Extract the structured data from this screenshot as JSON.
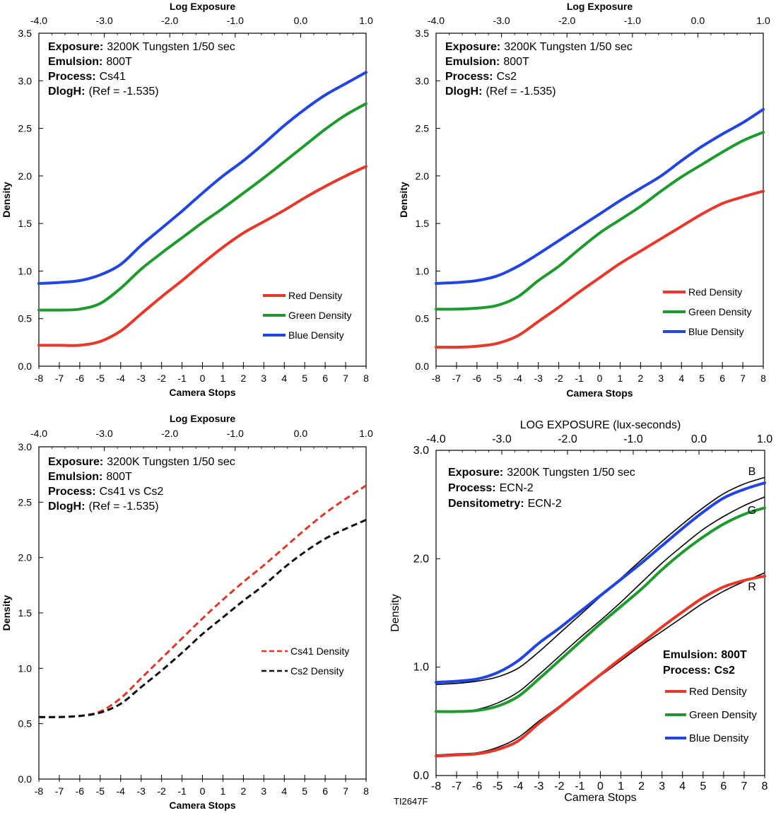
{
  "chart_data": [
    {
      "type": "line",
      "top_axis_title": "Log Exposure",
      "top_ticks": [
        "-4.0",
        "-3.0",
        "-2.0",
        "-1.0",
        "0.0",
        "1.0"
      ],
      "xlabel": "Camera Stops",
      "x_ticks": [
        "-8",
        "-7",
        "-6",
        "-5",
        "-4",
        "-3",
        "-2",
        "-1",
        "0",
        "1",
        "2",
        "3",
        "4",
        "5",
        "6",
        "7",
        "8"
      ],
      "ylabel": "Density",
      "y_ticks": [
        "0.0",
        "0.5",
        "1.0",
        "1.5",
        "2.0",
        "2.5",
        "3.0",
        "3.5"
      ],
      "xlim": [
        -8,
        8
      ],
      "ylim": [
        0,
        3.5
      ],
      "info": [
        {
          "key": "Exposure:",
          "value": "3200K Tungsten 1/50 sec"
        },
        {
          "key": "Emulsion:",
          "value": "800T"
        },
        {
          "key": "Process:",
          "value": "Cs41"
        },
        {
          "key": "DlogH:",
          "value": "(Ref = -1.535)"
        }
      ],
      "series": [
        {
          "name": "Red Density",
          "color": "#e8372b",
          "dash": "solid",
          "x": [
            -8,
            -7,
            -6,
            -5,
            -4,
            -3,
            -2,
            -1,
            0,
            1,
            2,
            3,
            4,
            5,
            6,
            7,
            8
          ],
          "y": [
            0.22,
            0.22,
            0.22,
            0.26,
            0.37,
            0.55,
            0.73,
            0.9,
            1.08,
            1.25,
            1.4,
            1.52,
            1.64,
            1.77,
            1.89,
            2.0,
            2.1
          ]
        },
        {
          "name": "Green Density",
          "color": "#1f9a2e",
          "dash": "solid",
          "x": [
            -8,
            -7,
            -6,
            -5,
            -4,
            -3,
            -2,
            -1,
            0,
            1,
            2,
            3,
            4,
            5,
            6,
            7,
            8
          ],
          "y": [
            0.59,
            0.59,
            0.6,
            0.66,
            0.82,
            1.02,
            1.19,
            1.35,
            1.51,
            1.66,
            1.82,
            1.98,
            2.15,
            2.32,
            2.49,
            2.64,
            2.76
          ]
        },
        {
          "name": "Blue Density",
          "color": "#2244e0",
          "dash": "solid",
          "x": [
            -8,
            -7,
            -6,
            -5,
            -4,
            -3,
            -2,
            -1,
            0,
            1,
            2,
            3,
            4,
            5,
            6,
            7,
            8
          ],
          "y": [
            0.87,
            0.88,
            0.9,
            0.96,
            1.07,
            1.27,
            1.45,
            1.63,
            1.82,
            2.0,
            2.16,
            2.34,
            2.53,
            2.7,
            2.85,
            2.97,
            3.09
          ]
        }
      ]
    },
    {
      "type": "line",
      "top_axis_title": "Log Exposure",
      "top_ticks": [
        "-4.0",
        "-3.0",
        "-2.0",
        "-1.0",
        "0.0",
        "1.0"
      ],
      "xlabel": "Camera Stops",
      "x_ticks": [
        "-8",
        "-7",
        "-6",
        "-5",
        "-4",
        "-3",
        "-2",
        "-1",
        "0",
        "1",
        "2",
        "3",
        "4",
        "5",
        "6",
        "7",
        "8"
      ],
      "ylabel": "Density",
      "y_ticks": [
        "0.0",
        "0.5",
        "1.0",
        "1.5",
        "2.0",
        "2.5",
        "3.0",
        "3.5"
      ],
      "xlim": [
        -8,
        8
      ],
      "ylim": [
        0,
        3.5
      ],
      "info": [
        {
          "key": "Exposure:",
          "value": "3200K Tungsten 1/50 sec"
        },
        {
          "key": "Emulsion:",
          "value": "800T"
        },
        {
          "key": "Process:",
          "value": "Cs2"
        },
        {
          "key": "DlogH:",
          "value": "(Ref = -1.535)"
        }
      ],
      "series": [
        {
          "name": "Red Density",
          "color": "#e8372b",
          "dash": "solid",
          "x": [
            -8,
            -7,
            -6,
            -5,
            -4,
            -3,
            -2,
            -1,
            0,
            1,
            2,
            3,
            4,
            5,
            6,
            7,
            8
          ],
          "y": [
            0.2,
            0.2,
            0.21,
            0.24,
            0.32,
            0.47,
            0.62,
            0.78,
            0.93,
            1.08,
            1.21,
            1.34,
            1.47,
            1.6,
            1.71,
            1.78,
            1.84
          ]
        },
        {
          "name": "Green Density",
          "color": "#1f9a2e",
          "dash": "solid",
          "x": [
            -8,
            -7,
            -6,
            -5,
            -4,
            -3,
            -2,
            -1,
            0,
            1,
            2,
            3,
            4,
            5,
            6,
            7,
            8
          ],
          "y": [
            0.6,
            0.6,
            0.61,
            0.64,
            0.73,
            0.9,
            1.05,
            1.23,
            1.4,
            1.54,
            1.68,
            1.84,
            1.99,
            2.12,
            2.25,
            2.37,
            2.46
          ]
        },
        {
          "name": "Blue Density",
          "color": "#2244e0",
          "dash": "solid",
          "x": [
            -8,
            -7,
            -6,
            -5,
            -4,
            -3,
            -2,
            -1,
            0,
            1,
            2,
            3,
            4,
            5,
            6,
            7,
            8
          ],
          "y": [
            0.87,
            0.88,
            0.9,
            0.95,
            1.05,
            1.18,
            1.32,
            1.46,
            1.6,
            1.74,
            1.87,
            2.0,
            2.16,
            2.31,
            2.44,
            2.56,
            2.7
          ]
        }
      ]
    },
    {
      "type": "line",
      "top_axis_title": "Log Exposure",
      "top_ticks": [
        "-4.0",
        "-3.0",
        "-2.0",
        "-1.0",
        "0.0",
        "1.0"
      ],
      "xlabel": "Camera Stops",
      "x_ticks": [
        "-8",
        "-7",
        "-6",
        "-5",
        "-4",
        "-3",
        "-2",
        "-1",
        "0",
        "1",
        "2",
        "3",
        "4",
        "5",
        "6",
        "7",
        "8"
      ],
      "ylabel": "Density",
      "y_ticks": [
        "0.0",
        "0.5",
        "1.0",
        "1.5",
        "2.0",
        "2.5",
        "3.0"
      ],
      "xlim": [
        -8,
        8
      ],
      "ylim": [
        0,
        3.0
      ],
      "info": [
        {
          "key": "Exposure:",
          "value": "3200K Tungsten 1/50 sec"
        },
        {
          "key": "Emulsion:",
          "value": "800T"
        },
        {
          "key": "Process:",
          "value": "Cs41 vs Cs2"
        },
        {
          "key": "DlogH:",
          "value": "(Ref = -1.535)"
        }
      ],
      "series": [
        {
          "name": "Cs41 Density",
          "color": "#d9392b",
          "dash": "dashed",
          "x": [
            -8,
            -7,
            -6,
            -5,
            -4,
            -3,
            -2,
            -1,
            0,
            1,
            2,
            3,
            4,
            5,
            6,
            7,
            8
          ],
          "y": [
            0.56,
            0.56,
            0.57,
            0.61,
            0.73,
            0.91,
            1.09,
            1.27,
            1.45,
            1.62,
            1.78,
            1.93,
            2.09,
            2.25,
            2.4,
            2.53,
            2.65
          ]
        },
        {
          "name": "Cs2 Density",
          "color": "#111111",
          "dash": "dashed",
          "x": [
            -8,
            -7,
            -6,
            -5,
            -4,
            -3,
            -2,
            -1,
            0,
            1,
            2,
            3,
            4,
            5,
            6,
            7,
            8
          ],
          "y": [
            0.56,
            0.56,
            0.57,
            0.6,
            0.68,
            0.83,
            0.98,
            1.14,
            1.31,
            1.46,
            1.61,
            1.75,
            1.91,
            2.05,
            2.17,
            2.26,
            2.34
          ]
        }
      ]
    },
    {
      "type": "line",
      "top_axis_title": "LOG EXPOSURE (lux-seconds)",
      "top_ticks": [
        "-4.0",
        "-3.0",
        "-2.0",
        "-1.0",
        "0.0",
        "1.0"
      ],
      "xlabel": "Camera Stops",
      "x_ticks": [
        "-8",
        "-7",
        "-6",
        "-5",
        "-4",
        "-3",
        "-2",
        "-1",
        "0",
        "1",
        "2",
        "3",
        "4",
        "5",
        "6",
        "7",
        "8"
      ],
      "ylabel": "Density",
      "y_ticks": [
        "0.0",
        "1.0",
        "2.0",
        "3.0"
      ],
      "xlim": [
        -8,
        8
      ],
      "ylim": [
        0,
        3.0
      ],
      "info": [
        {
          "key": "Exposure:",
          "value": "3200K Tungsten 1/50 sec"
        },
        {
          "key": "Process:",
          "value": "ECN-2"
        },
        {
          "key": "Densitometry:",
          "value": "ECN-2"
        }
      ],
      "info2": [
        {
          "key": "Emulsion:",
          "value": "800T"
        },
        {
          "key": "Process:",
          "value": "Cs2"
        }
      ],
      "curve_labels": [
        "B",
        "G",
        "R"
      ],
      "footer_code": "TI2647F",
      "reference_series": [
        {
          "color": "#000000",
          "x": [
            -8,
            -7,
            -6,
            -5,
            -4,
            -3,
            -2,
            -1,
            0,
            1,
            2,
            3,
            4,
            5,
            6,
            7,
            8
          ],
          "y": [
            0.19,
            0.2,
            0.21,
            0.26,
            0.35,
            0.5,
            0.64,
            0.79,
            0.92,
            1.06,
            1.2,
            1.33,
            1.46,
            1.59,
            1.7,
            1.79,
            1.87
          ]
        },
        {
          "color": "#000000",
          "x": [
            -8,
            -7,
            -6,
            -5,
            -4,
            -3,
            -2,
            -1,
            0,
            1,
            2,
            3,
            4,
            5,
            6,
            7,
            8
          ],
          "y": [
            0.59,
            0.59,
            0.61,
            0.67,
            0.77,
            0.93,
            1.1,
            1.27,
            1.43,
            1.6,
            1.78,
            1.96,
            2.12,
            2.27,
            2.39,
            2.49,
            2.57
          ]
        },
        {
          "color": "#000000",
          "x": [
            -8,
            -7,
            -6,
            -5,
            -4,
            -3,
            -2,
            -1,
            0,
            1,
            2,
            3,
            4,
            5,
            6,
            7,
            8
          ],
          "y": [
            0.84,
            0.85,
            0.87,
            0.91,
            0.99,
            1.14,
            1.31,
            1.48,
            1.65,
            1.82,
            1.99,
            2.16,
            2.32,
            2.47,
            2.6,
            2.69,
            2.75
          ]
        }
      ],
      "series": [
        {
          "name": "Red Density",
          "color": "#e8372b",
          "dash": "solid",
          "x": [
            -8,
            -7,
            -6,
            -5,
            -4,
            -3,
            -2,
            -1,
            0,
            1,
            2,
            3,
            4,
            5,
            6,
            7,
            8
          ],
          "y": [
            0.18,
            0.19,
            0.2,
            0.24,
            0.32,
            0.48,
            0.63,
            0.78,
            0.93,
            1.08,
            1.22,
            1.37,
            1.51,
            1.64,
            1.74,
            1.8,
            1.84
          ]
        },
        {
          "name": "Green Density",
          "color": "#1f9a2e",
          "dash": "solid",
          "x": [
            -8,
            -7,
            -6,
            -5,
            -4,
            -3,
            -2,
            -1,
            0,
            1,
            2,
            3,
            4,
            5,
            6,
            7,
            8
          ],
          "y": [
            0.59,
            0.59,
            0.6,
            0.64,
            0.73,
            0.89,
            1.06,
            1.23,
            1.4,
            1.56,
            1.72,
            1.9,
            2.06,
            2.2,
            2.32,
            2.41,
            2.47
          ]
        },
        {
          "name": "Blue Density",
          "color": "#2244e0",
          "dash": "solid",
          "x": [
            -8,
            -7,
            -6,
            -5,
            -4,
            -3,
            -2,
            -1,
            0,
            1,
            2,
            3,
            4,
            5,
            6,
            7,
            8
          ],
          "y": [
            0.86,
            0.87,
            0.89,
            0.95,
            1.06,
            1.22,
            1.36,
            1.51,
            1.66,
            1.81,
            1.96,
            2.12,
            2.28,
            2.43,
            2.56,
            2.64,
            2.7
          ]
        }
      ]
    }
  ]
}
